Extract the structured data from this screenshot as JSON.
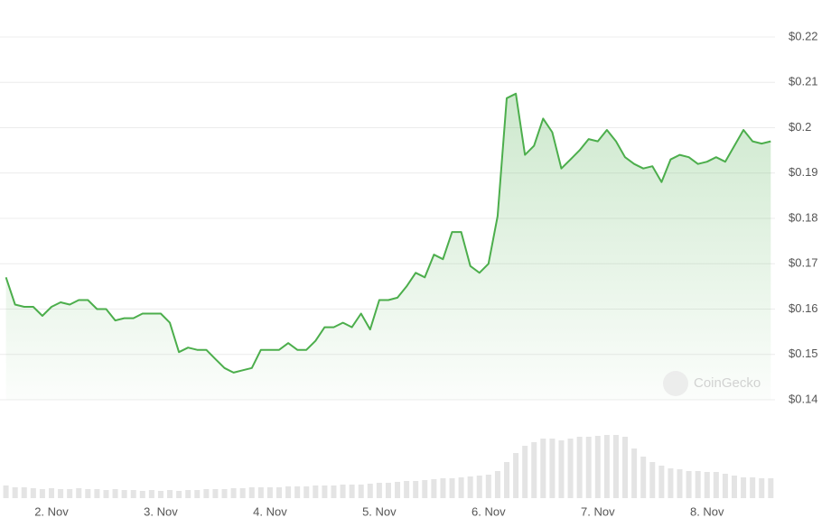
{
  "chart_data": {
    "type": "line",
    "watermark": "CoinGecko",
    "categories": [
      null,
      null,
      null,
      null,
      null,
      "2. Nov",
      null,
      null,
      null,
      null,
      null,
      null,
      null,
      null,
      null,
      null,
      null,
      "3. Nov",
      null,
      null,
      null,
      null,
      null,
      null,
      null,
      null,
      null,
      null,
      null,
      "4. Nov",
      null,
      null,
      null,
      null,
      null,
      null,
      null,
      null,
      null,
      null,
      null,
      "5. Nov",
      null,
      null,
      null,
      null,
      null,
      null,
      null,
      null,
      null,
      null,
      null,
      "6. Nov",
      null,
      null,
      null,
      null,
      null,
      null,
      null,
      null,
      null,
      null,
      null,
      "7. Nov",
      null,
      null,
      null,
      null,
      null,
      null,
      null,
      null,
      null,
      null,
      null,
      "8. Nov",
      null,
      null,
      null,
      null,
      null,
      null,
      null
    ],
    "values": [
      0.167,
      0.161,
      0.1605,
      0.1605,
      0.1585,
      0.1605,
      0.1615,
      0.161,
      0.162,
      0.162,
      0.16,
      0.16,
      0.1575,
      0.158,
      0.158,
      0.159,
      0.159,
      0.159,
      0.157,
      0.1505,
      0.1515,
      0.151,
      0.151,
      0.149,
      0.147,
      0.146,
      0.1465,
      0.147,
      0.151,
      0.151,
      0.151,
      0.1525,
      0.151,
      0.151,
      0.153,
      0.156,
      0.156,
      0.157,
      0.156,
      0.159,
      0.1555,
      0.162,
      0.162,
      0.1625,
      0.165,
      0.168,
      0.167,
      0.172,
      0.171,
      0.177,
      0.177,
      0.1695,
      0.168,
      0.17,
      0.1805,
      0.2065,
      0.2075,
      0.194,
      0.196,
      0.202,
      0.199,
      0.191,
      0.193,
      0.195,
      0.1975,
      0.197,
      0.1995,
      0.197,
      0.1935,
      0.192,
      0.191,
      0.1915,
      0.188,
      0.193,
      0.194,
      0.1935,
      0.192,
      0.1925,
      0.1935,
      0.1925,
      0.196,
      0.1995,
      0.197,
      0.1965,
      0.197
    ],
    "color": "#4cae4c",
    "area": true,
    "volume": {
      "color": "#e4e4e4",
      "values": [
        14,
        12,
        12,
        11,
        10,
        11,
        10,
        10,
        11,
        10,
        10,
        9,
        10,
        9,
        9,
        8,
        9,
        8,
        9,
        8,
        9,
        9,
        10,
        10,
        10,
        11,
        11,
        12,
        12,
        12,
        12,
        13,
        13,
        13,
        14,
        14,
        14,
        15,
        15,
        15,
        16,
        17,
        17,
        18,
        19,
        19,
        20,
        21,
        22,
        22,
        23,
        24,
        25,
        26,
        30,
        40,
        50,
        58,
        62,
        66,
        66,
        64,
        66,
        68,
        68,
        69,
        70,
        70,
        68,
        55,
        46,
        40,
        36,
        33,
        32,
        30,
        30,
        29,
        29,
        27,
        25,
        23,
        23,
        22,
        22
      ]
    },
    "ylim": [
      0.14,
      0.22
    ],
    "yticks": [
      {
        "value": 0.14,
        "label": "$0.14"
      },
      {
        "value": 0.15,
        "label": "$0.15"
      },
      {
        "value": 0.16,
        "label": "$0.16"
      },
      {
        "value": 0.17,
        "label": "$0.17"
      },
      {
        "value": 0.18,
        "label": "$0.18"
      },
      {
        "value": 0.19,
        "label": "$0.19"
      },
      {
        "value": 0.2,
        "label": "$0.2"
      },
      {
        "value": 0.21,
        "label": "$0.21"
      },
      {
        "value": 0.22,
        "label": "$0.22"
      }
    ],
    "grid": true
  }
}
